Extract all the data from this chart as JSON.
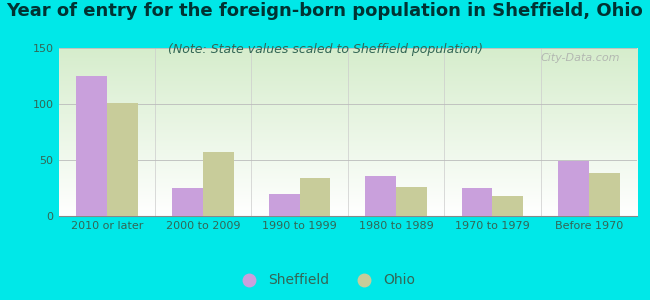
{
  "title": "Year of entry for the foreign-born population in Sheffield, Ohio",
  "subtitle": "(Note: State values scaled to Sheffield population)",
  "categories": [
    "2010 or later",
    "2000 to 2009",
    "1990 to 1999",
    "1980 to 1989",
    "1970 to 1979",
    "Before 1970"
  ],
  "sheffield_values": [
    125,
    25,
    20,
    36,
    25,
    49
  ],
  "ohio_values": [
    101,
    57,
    34,
    26,
    18,
    38
  ],
  "sheffield_color": "#c9a0dc",
  "ohio_color": "#c8cc9a",
  "background_outer": "#00e8e8",
  "ylim": [
    0,
    150
  ],
  "yticks": [
    0,
    50,
    100,
    150
  ],
  "bar_width": 0.32,
  "title_fontsize": 13,
  "subtitle_fontsize": 9,
  "legend_fontsize": 10,
  "tick_fontsize": 8,
  "watermark_text": "City-Data.com"
}
